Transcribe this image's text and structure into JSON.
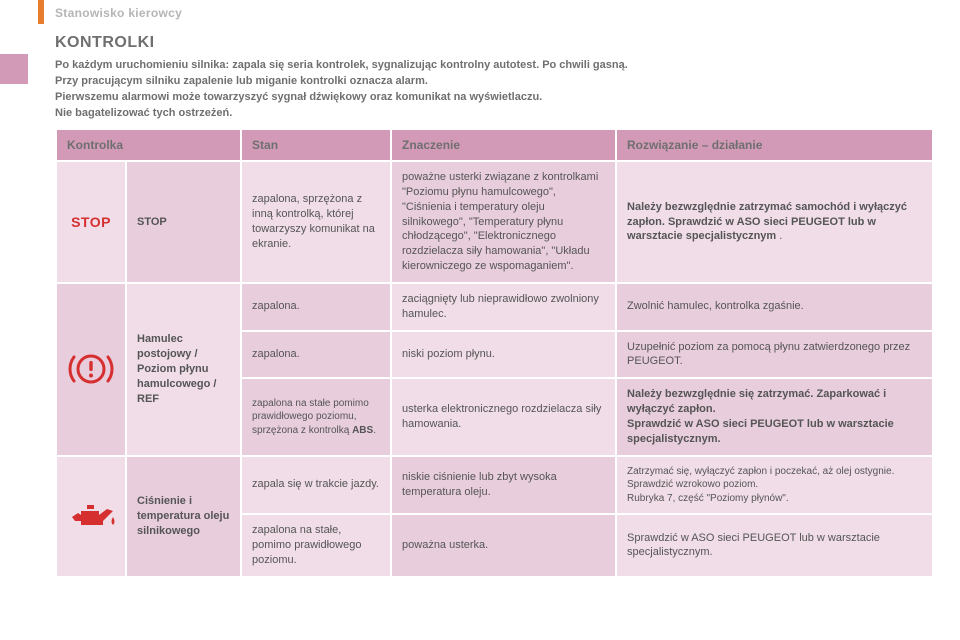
{
  "section_label": "Stanowisko kierowcy",
  "title": "KONTROLKI",
  "intro_lines": [
    "Po każdym uruchomieniu silnika: zapala się seria kontrolek, sygnalizując kontrolny autotest. Po chwili gasną.",
    "Przy pracującym silniku zapalenie lub miganie kontrolki oznacza alarm.",
    "Pierwszemu alarmowi może towarzyszyć sygnał dźwiękowy oraz komunikat na wyświetlaczu.",
    "Nie bagatelizować tych ostrzeżeń."
  ],
  "headers": {
    "indicator": "Kontrolka",
    "state": "Stan",
    "meaning": "Znaczenie",
    "action": "Rozwiązanie – działanie"
  },
  "rows": {
    "stop": {
      "icon_text": "STOP",
      "name": "STOP",
      "state": "zapalona, sprzężona z inną kontrolką, której towarzyszy komunikat na ekranie.",
      "meaning": "poważne usterki związane z kontrolkami \"Poziomu płynu hamulcowego\", \"Ciśnienia i temperatury oleju silnikowego\", \"Temperatury płynu chłodzącego\", \"Elektronicznego rozdzielacza siły hamowania\", \"Układu kierowniczego ze wspomaganiem\".",
      "action_html": "<b>Należy bezwzględnie zatrzymać samochód i wyłączyć zapłon. Sprawdzić w ASO sieci PEUGEOT lub w warsztacie specjalistycznym</b> ."
    },
    "brake_name": "Hamulec postojowy / Poziom płynu hamulcowego / REF",
    "brake1": {
      "state": "zapalona.",
      "meaning": "zaciągnięty lub nieprawidłowo zwolniony hamulec.",
      "action": "Zwolnić hamulec, kontrolka zgaśnie."
    },
    "brake2": {
      "state": "zapalona.",
      "meaning": "niski poziom płynu.",
      "action": "Uzupełnić poziom za pomocą płynu zatwierdzonego przez PEUGEOT."
    },
    "brake3": {
      "state_html": "zapalona na stałe pomimo prawidłowego poziomu, sprzężona z kontrolką <b>ABS</b>.",
      "meaning": "usterka elektronicznego rozdzielacza siły hamowania.",
      "action_html": "<b>Należy bezwzględnie się zatrzymać. Zaparkować i wyłączyć zapłon.</b><br><b>Sprawdzić w ASO sieci PEUGEOT lub w warsztacie specjalistycznym.</b>"
    },
    "oil_name": "Ciśnienie i temperatura oleju silnikowego",
    "oil1": {
      "state": "zapala się w trakcie jazdy.",
      "meaning": "niskie ciśnienie lub zbyt wysoka temperatura oleju.",
      "action_html": "Zatrzymać się, wyłączyć zapłon i poczekać, aż olej ostygnie.<br>Sprawdzić wzrokowo poziom.<br>Rubryka 7, część \"Poziomy płynów\"."
    },
    "oil2": {
      "state": "zapalona na stałe, pomimo prawidłowego poziomu.",
      "meaning": "poważna usterka.",
      "action": "Sprawdzić w ASO sieci PEUGEOT lub w warsztacie specjalistycznym."
    }
  },
  "colors": {
    "header_bg": "#d39ab8",
    "row_light": "#f0dde8",
    "row_dark": "#e8cddd",
    "orange": "#e87d2e",
    "stop_red": "#d62f2f",
    "icon_red": "#d62f2f",
    "text_grey": "#6f6f6f"
  }
}
